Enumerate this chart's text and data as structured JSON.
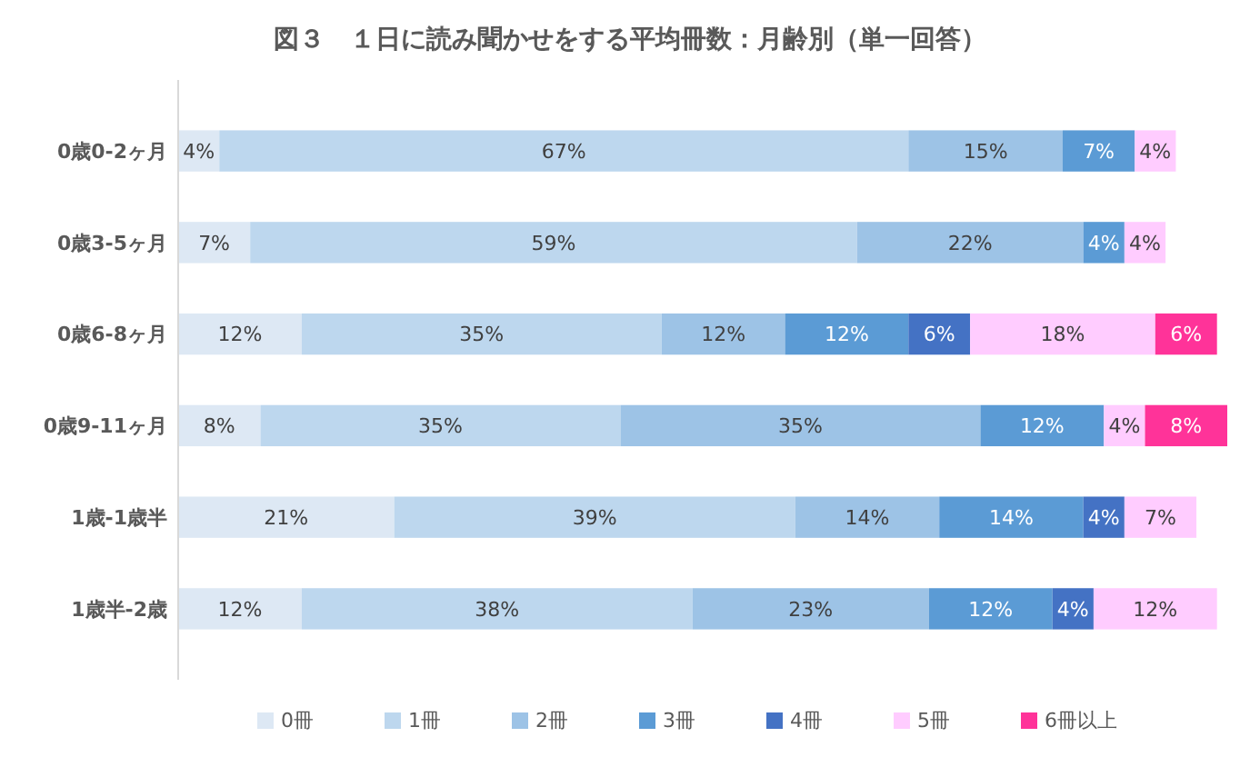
{
  "chart_data": {
    "type": "bar",
    "orientation": "horizontal",
    "stacked": true,
    "title": "図３　１日に読み聞かせをする平均冊数：月齢別（単一回答）",
    "categories": [
      "0歳0-2ヶ月",
      "0歳3-5ヶ月",
      "0歳6-8ヶ月",
      "0歳9-11ヶ月",
      "1歳-1歳半",
      "1歳半-2歳"
    ],
    "legend": "bottom",
    "tick_labels": "y",
    "series": [
      {
        "name": "0冊",
        "color": "#dde8f4",
        "values": [
          4,
          7,
          12,
          8,
          21,
          12
        ],
        "value_labels": [
          "4%",
          "7%",
          "12%",
          "8%",
          "21%",
          "12%"
        ]
      },
      {
        "name": "1冊",
        "color": "#bdd7ee",
        "values": [
          67,
          59,
          35,
          35,
          39,
          38
        ],
        "value_labels": [
          "67%",
          "59%",
          "35%",
          "35%",
          "39%",
          "38%"
        ]
      },
      {
        "name": "2冊",
        "color": "#9dc3e6",
        "values": [
          15,
          22,
          12,
          35,
          14,
          23
        ],
        "value_labels": [
          "15%",
          "22%",
          "12%",
          "35%",
          "14%",
          "23%"
        ]
      },
      {
        "name": "3冊",
        "color": "#5b9bd5",
        "values": [
          7,
          4,
          12,
          12,
          14,
          12
        ],
        "value_labels": [
          "7%",
          "4%",
          "12%",
          "12%",
          "14%",
          "12%"
        ]
      },
      {
        "name": "4冊",
        "color": "#4472c4",
        "values": [
          null,
          null,
          6,
          null,
          4,
          4
        ],
        "value_labels": [
          null,
          null,
          "6%",
          null,
          "4%",
          "4%"
        ]
      },
      {
        "name": "5冊",
        "color": "#ffccff",
        "values": [
          4,
          4,
          18,
          4,
          7,
          12
        ],
        "value_labels": [
          "4%",
          "4%",
          "18%",
          "4%",
          "7%",
          "12%"
        ]
      },
      {
        "name": "6冊以上",
        "color": "#ff3399",
        "values": [
          null,
          null,
          6,
          8,
          null,
          null
        ],
        "value_labels": [
          null,
          null,
          "6%",
          "8%",
          null,
          null
        ]
      }
    ]
  }
}
